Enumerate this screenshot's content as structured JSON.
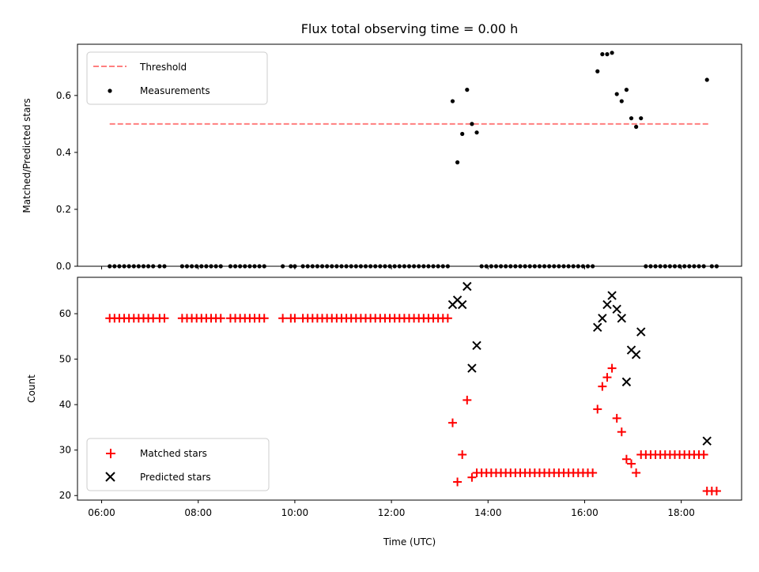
{
  "title": "Flux total observing time = 0.00 h",
  "xlabel": "Time (UTC)",
  "xtick_labels": [
    "06:00",
    "08:00",
    "10:00",
    "12:00",
    "14:00",
    "16:00",
    "18:00"
  ],
  "colors": {
    "threshold": "#ff7f7f",
    "measurements": "#000000",
    "matched": "#ff0000",
    "predicted": "#000000"
  },
  "chart_data": [
    {
      "type": "scatter",
      "ylabel": "Matched/Predicted stars",
      "xlim": [
        "05:30",
        "19:15"
      ],
      "ylim": [
        0.0,
        0.78
      ],
      "yticks": [
        0.0,
        0.2,
        0.4,
        0.6
      ],
      "ytick_labels": [
        "0.0",
        "0.2",
        "0.4",
        "0.6"
      ],
      "legend_position": "top-left",
      "threshold": {
        "name": "Threshold",
        "value": 0.5,
        "x_start": "06:10",
        "x_end": "18:35",
        "style": "dashed"
      },
      "series": [
        {
          "name": "Measurements",
          "marker": "dot",
          "points": [
            [
              "06:10",
              0
            ],
            [
              "06:16",
              0
            ],
            [
              "06:22",
              0
            ],
            [
              "06:28",
              0
            ],
            [
              "06:34",
              0
            ],
            [
              "06:40",
              0
            ],
            [
              "06:46",
              0
            ],
            [
              "06:52",
              0
            ],
            [
              "06:58",
              0
            ],
            [
              "07:04",
              0
            ],
            [
              "07:12",
              0
            ],
            [
              "07:18",
              0
            ],
            [
              "07:40",
              0
            ],
            [
              "07:46",
              0
            ],
            [
              "07:52",
              0
            ],
            [
              "07:58",
              0
            ],
            [
              "08:04",
              0
            ],
            [
              "08:10",
              0
            ],
            [
              "08:16",
              0
            ],
            [
              "08:22",
              0
            ],
            [
              "08:28",
              0
            ],
            [
              "08:40",
              0
            ],
            [
              "08:46",
              0
            ],
            [
              "08:52",
              0
            ],
            [
              "08:58",
              0
            ],
            [
              "09:04",
              0
            ],
            [
              "09:10",
              0
            ],
            [
              "09:16",
              0
            ],
            [
              "09:22",
              0
            ],
            [
              "09:45",
              0
            ],
            [
              "09:55",
              0
            ],
            [
              "10:00",
              0
            ],
            [
              "10:10",
              0
            ],
            [
              "10:16",
              0
            ],
            [
              "10:22",
              0
            ],
            [
              "10:28",
              0
            ],
            [
              "10:34",
              0
            ],
            [
              "10:40",
              0
            ],
            [
              "10:46",
              0
            ],
            [
              "10:52",
              0
            ],
            [
              "10:58",
              0
            ],
            [
              "11:04",
              0
            ],
            [
              "11:10",
              0
            ],
            [
              "11:16",
              0
            ],
            [
              "11:22",
              0
            ],
            [
              "11:28",
              0
            ],
            [
              "11:34",
              0
            ],
            [
              "11:40",
              0
            ],
            [
              "11:46",
              0
            ],
            [
              "11:52",
              0
            ],
            [
              "11:58",
              0
            ],
            [
              "12:04",
              0
            ],
            [
              "12:10",
              0
            ],
            [
              "12:16",
              0
            ],
            [
              "12:22",
              0
            ],
            [
              "12:28",
              0
            ],
            [
              "12:34",
              0
            ],
            [
              "12:40",
              0
            ],
            [
              "12:46",
              0
            ],
            [
              "12:52",
              0
            ],
            [
              "12:58",
              0
            ],
            [
              "13:04",
              0
            ],
            [
              "13:10",
              0
            ],
            [
              "13:16",
              0.58
            ],
            [
              "13:22",
              0.365
            ],
            [
              "13:28",
              0.465
            ],
            [
              "13:34",
              0.62
            ],
            [
              "13:40",
              0.5
            ],
            [
              "13:46",
              0.47
            ],
            [
              "13:52",
              0
            ],
            [
              "13:58",
              0
            ],
            [
              "14:04",
              0
            ],
            [
              "14:10",
              0
            ],
            [
              "14:16",
              0
            ],
            [
              "14:22",
              0
            ],
            [
              "14:28",
              0
            ],
            [
              "14:34",
              0
            ],
            [
              "14:40",
              0
            ],
            [
              "14:46",
              0
            ],
            [
              "14:52",
              0
            ],
            [
              "14:58",
              0
            ],
            [
              "15:04",
              0
            ],
            [
              "15:10",
              0
            ],
            [
              "15:16",
              0
            ],
            [
              "15:22",
              0
            ],
            [
              "15:28",
              0
            ],
            [
              "15:34",
              0
            ],
            [
              "15:40",
              0
            ],
            [
              "15:46",
              0
            ],
            [
              "15:52",
              0
            ],
            [
              "15:58",
              0
            ],
            [
              "16:04",
              0
            ],
            [
              "16:10",
              0
            ],
            [
              "16:16",
              0.685
            ],
            [
              "16:22",
              0.745
            ],
            [
              "16:28",
              0.745
            ],
            [
              "16:34",
              0.75
            ],
            [
              "16:40",
              0.605
            ],
            [
              "16:46",
              0.58
            ],
            [
              "16:52",
              0.62
            ],
            [
              "16:58",
              0.52
            ],
            [
              "17:04",
              0.49
            ],
            [
              "17:10",
              0.52
            ],
            [
              "17:16",
              0
            ],
            [
              "17:22",
              0
            ],
            [
              "17:28",
              0
            ],
            [
              "17:34",
              0
            ],
            [
              "17:40",
              0
            ],
            [
              "17:46",
              0
            ],
            [
              "17:52",
              0
            ],
            [
              "17:58",
              0
            ],
            [
              "18:04",
              0
            ],
            [
              "18:10",
              0
            ],
            [
              "18:16",
              0
            ],
            [
              "18:22",
              0
            ],
            [
              "18:28",
              0
            ],
            [
              "18:32",
              0.655
            ],
            [
              "18:38",
              0
            ],
            [
              "18:44",
              0
            ]
          ]
        }
      ]
    },
    {
      "type": "scatter",
      "ylabel": "Count",
      "xlim": [
        "05:30",
        "19:15"
      ],
      "ylim": [
        19.0,
        68.0
      ],
      "yticks": [
        20,
        30,
        40,
        50,
        60
      ],
      "ytick_labels": [
        "20",
        "30",
        "40",
        "50",
        "60"
      ],
      "legend_position": "bottom-left",
      "series": [
        {
          "name": "Matched stars",
          "marker": "plus",
          "points": [
            [
              "06:10",
              59
            ],
            [
              "06:16",
              59
            ],
            [
              "06:22",
              59
            ],
            [
              "06:28",
              59
            ],
            [
              "06:34",
              59
            ],
            [
              "06:40",
              59
            ],
            [
              "06:46",
              59
            ],
            [
              "06:52",
              59
            ],
            [
              "06:58",
              59
            ],
            [
              "07:04",
              59
            ],
            [
              "07:12",
              59
            ],
            [
              "07:18",
              59
            ],
            [
              "07:40",
              59
            ],
            [
              "07:46",
              59
            ],
            [
              "07:52",
              59
            ],
            [
              "07:58",
              59
            ],
            [
              "08:04",
              59
            ],
            [
              "08:10",
              59
            ],
            [
              "08:16",
              59
            ],
            [
              "08:22",
              59
            ],
            [
              "08:28",
              59
            ],
            [
              "08:40",
              59
            ],
            [
              "08:46",
              59
            ],
            [
              "08:52",
              59
            ],
            [
              "08:58",
              59
            ],
            [
              "09:04",
              59
            ],
            [
              "09:10",
              59
            ],
            [
              "09:16",
              59
            ],
            [
              "09:22",
              59
            ],
            [
              "09:45",
              59
            ],
            [
              "09:55",
              59
            ],
            [
              "10:00",
              59
            ],
            [
              "10:10",
              59
            ],
            [
              "10:16",
              59
            ],
            [
              "10:22",
              59
            ],
            [
              "10:28",
              59
            ],
            [
              "10:34",
              59
            ],
            [
              "10:40",
              59
            ],
            [
              "10:46",
              59
            ],
            [
              "10:52",
              59
            ],
            [
              "10:58",
              59
            ],
            [
              "11:04",
              59
            ],
            [
              "11:10",
              59
            ],
            [
              "11:16",
              59
            ],
            [
              "11:22",
              59
            ],
            [
              "11:28",
              59
            ],
            [
              "11:34",
              59
            ],
            [
              "11:40",
              59
            ],
            [
              "11:46",
              59
            ],
            [
              "11:52",
              59
            ],
            [
              "11:58",
              59
            ],
            [
              "12:04",
              59
            ],
            [
              "12:10",
              59
            ],
            [
              "12:16",
              59
            ],
            [
              "12:22",
              59
            ],
            [
              "12:28",
              59
            ],
            [
              "12:34",
              59
            ],
            [
              "12:40",
              59
            ],
            [
              "12:46",
              59
            ],
            [
              "12:52",
              59
            ],
            [
              "12:58",
              59
            ],
            [
              "13:04",
              59
            ],
            [
              "13:10",
              59
            ],
            [
              "13:16",
              36
            ],
            [
              "13:22",
              23
            ],
            [
              "13:28",
              29
            ],
            [
              "13:34",
              41
            ],
            [
              "13:40",
              24
            ],
            [
              "13:46",
              25
            ],
            [
              "13:52",
              25
            ],
            [
              "13:58",
              25
            ],
            [
              "14:04",
              25
            ],
            [
              "14:10",
              25
            ],
            [
              "14:16",
              25
            ],
            [
              "14:22",
              25
            ],
            [
              "14:28",
              25
            ],
            [
              "14:34",
              25
            ],
            [
              "14:40",
              25
            ],
            [
              "14:46",
              25
            ],
            [
              "14:52",
              25
            ],
            [
              "14:58",
              25
            ],
            [
              "15:04",
              25
            ],
            [
              "15:10",
              25
            ],
            [
              "15:16",
              25
            ],
            [
              "15:22",
              25
            ],
            [
              "15:28",
              25
            ],
            [
              "15:34",
              25
            ],
            [
              "15:40",
              25
            ],
            [
              "15:46",
              25
            ],
            [
              "15:52",
              25
            ],
            [
              "15:58",
              25
            ],
            [
              "16:04",
              25
            ],
            [
              "16:10",
              25
            ],
            [
              "16:16",
              39
            ],
            [
              "16:22",
              44
            ],
            [
              "16:28",
              46
            ],
            [
              "16:34",
              48
            ],
            [
              "16:40",
              37
            ],
            [
              "16:46",
              34
            ],
            [
              "16:52",
              28
            ],
            [
              "16:58",
              27
            ],
            [
              "17:04",
              25
            ],
            [
              "17:10",
              29
            ],
            [
              "17:16",
              29
            ],
            [
              "17:22",
              29
            ],
            [
              "17:28",
              29
            ],
            [
              "17:34",
              29
            ],
            [
              "17:40",
              29
            ],
            [
              "17:46",
              29
            ],
            [
              "17:52",
              29
            ],
            [
              "17:58",
              29
            ],
            [
              "18:04",
              29
            ],
            [
              "18:10",
              29
            ],
            [
              "18:16",
              29
            ],
            [
              "18:22",
              29
            ],
            [
              "18:28",
              29
            ],
            [
              "18:32",
              21
            ],
            [
              "18:38",
              21
            ],
            [
              "18:44",
              21
            ]
          ]
        },
        {
          "name": "Predicted stars",
          "marker": "x",
          "points": [
            [
              "13:16",
              62
            ],
            [
              "13:22",
              63
            ],
            [
              "13:28",
              62
            ],
            [
              "13:34",
              66
            ],
            [
              "13:40",
              48
            ],
            [
              "13:46",
              53
            ],
            [
              "16:16",
              57
            ],
            [
              "16:22",
              59
            ],
            [
              "16:28",
              62
            ],
            [
              "16:34",
              64
            ],
            [
              "16:40",
              61
            ],
            [
              "16:46",
              59
            ],
            [
              "16:52",
              45
            ],
            [
              "16:58",
              52
            ],
            [
              "17:04",
              51
            ],
            [
              "17:10",
              56
            ],
            [
              "18:32",
              32
            ]
          ]
        }
      ]
    }
  ]
}
